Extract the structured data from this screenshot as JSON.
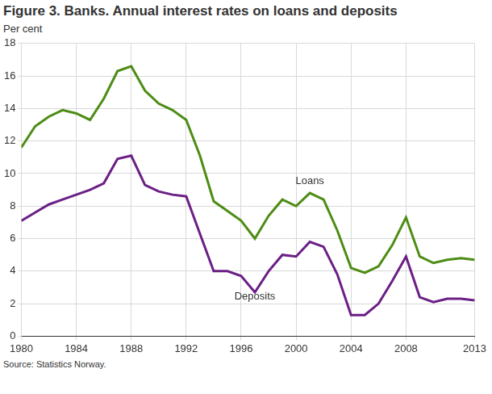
{
  "chart_data": {
    "type": "line",
    "title": "Figure 3. Banks. Annual interest rates on loans and deposits",
    "y_label": "Per cent",
    "source": "Source: Statistics Norway.",
    "x": [
      1980,
      1981,
      1982,
      1983,
      1984,
      1985,
      1986,
      1987,
      1988,
      1989,
      1990,
      1991,
      1992,
      1993,
      1994,
      1995,
      1996,
      1997,
      1998,
      1999,
      2000,
      2001,
      2002,
      2003,
      2004,
      2005,
      2006,
      2007,
      2008,
      2009,
      2010,
      2011,
      2012,
      2013
    ],
    "series": [
      {
        "name": "Loans",
        "color": "#4d8c14",
        "values": [
          11.6,
          12.9,
          13.5,
          13.9,
          13.7,
          13.3,
          14.6,
          16.3,
          16.6,
          15.1,
          14.3,
          13.9,
          13.3,
          11.1,
          8.3,
          7.7,
          7.1,
          6.0,
          7.4,
          8.4,
          8.0,
          8.8,
          8.4,
          6.5,
          4.2,
          3.9,
          4.3,
          5.6,
          7.3,
          4.9,
          4.5,
          4.7,
          4.8,
          4.7
        ]
      },
      {
        "name": "Deposits",
        "color": "#6b1f86",
        "values": [
          7.1,
          7.6,
          8.1,
          8.4,
          8.7,
          9.0,
          9.4,
          10.9,
          11.1,
          9.3,
          8.9,
          8.7,
          8.6,
          6.3,
          4.0,
          4.0,
          3.7,
          2.7,
          4.0,
          5.0,
          4.9,
          5.8,
          5.5,
          3.8,
          1.3,
          1.3,
          2.0,
          3.4,
          4.9,
          2.4,
          2.1,
          2.3,
          2.3,
          2.2
        ]
      }
    ],
    "annotations": [
      {
        "text": "Loans",
        "x": 2001,
        "y": 9.2
      },
      {
        "text": "Deposits",
        "x": 1997,
        "y": 2.1
      }
    ],
    "xlim": [
      1980,
      2013
    ],
    "xticks": [
      1980,
      1984,
      1988,
      1992,
      1996,
      2000,
      2004,
      2008,
      2013
    ],
    "ylim": [
      0,
      18
    ],
    "yticks": [
      0,
      2,
      4,
      6,
      8,
      10,
      12,
      14,
      16,
      18
    ],
    "grid": true
  }
}
